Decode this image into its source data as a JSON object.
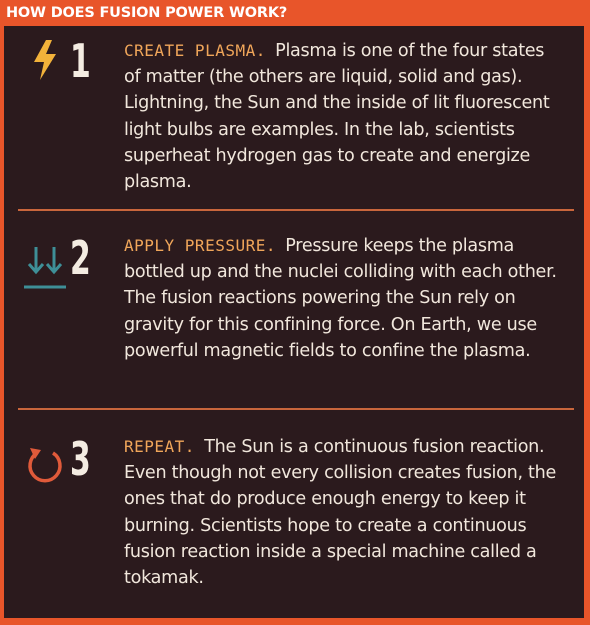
{
  "header": {
    "title": "HOW DOES FUSION POWER WORK?"
  },
  "colors": {
    "brand_orange": "#e8552a",
    "panel_bg": "#2b1a1d",
    "heading_accent": "#f0a65a",
    "lightning_icon": "#f2b23a",
    "pressure_icon": "#3e8f97",
    "repeat_icon": "#e05a3a",
    "body_text": "#f1e7dc"
  },
  "steps": [
    {
      "number": "1",
      "icon": "lightning-bolt-icon",
      "heading": "CREATE PLASMA.",
      "text": "Plasma is one of the four states of matter (the others are liquid, solid and gas). Lightning, the Sun and the inside of lit fluorescent light bulbs are examples. In the lab, scientists superheat hydrogen gas to create and energize plasma."
    },
    {
      "number": "2",
      "icon": "down-arrows-icon",
      "heading": "APPLY PRESSURE.",
      "text": "Pressure keeps the plasma bottled up and the nuclei colliding with each other. The fusion reactions powering the Sun rely on gravity for this confining force. On Earth, we use powerful magnetic fields to confine the plasma."
    },
    {
      "number": "3",
      "icon": "repeat-icon",
      "heading": "REPEAT.",
      "text": "The Sun is a continuous fusion reaction. Even though not every collision creates fusion, the ones that do produce enough energy to keep it burning. Scientists hope to create a continuous fusion reaction inside a special machine called a tokamak."
    }
  ]
}
